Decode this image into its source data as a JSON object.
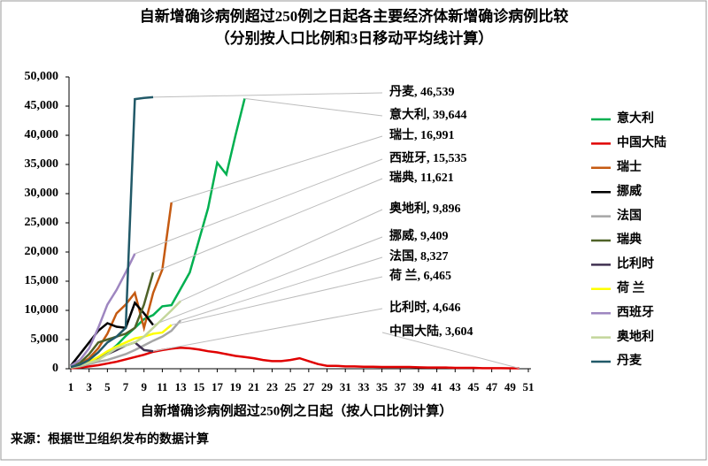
{
  "chart_data": {
    "type": "line",
    "title": "自新增确诊病例超过250例之日起各主要经济体新增确诊病例比较",
    "subtitle": "（分别按人口比例和3日移动平均线计算）",
    "x_label": "自新增确诊病例超过250例之日起（按人口比例计算）",
    "source": "来源：根据世卫组织发布的数据计算",
    "x": [
      1,
      2,
      3,
      4,
      5,
      6,
      7,
      8,
      9,
      10,
      11,
      12,
      13,
      14,
      15,
      16,
      17,
      18,
      19,
      20,
      21,
      22,
      23,
      24,
      25,
      26,
      27,
      28,
      29,
      30,
      31,
      32,
      33,
      34,
      35,
      36,
      37,
      38,
      39,
      40,
      41,
      42,
      43,
      44,
      45,
      46,
      47,
      48,
      49,
      50
    ],
    "xlim": [
      1,
      51
    ],
    "xticks": [
      1,
      3,
      5,
      7,
      9,
      11,
      13,
      15,
      17,
      19,
      21,
      23,
      25,
      27,
      29,
      31,
      33,
      35,
      37,
      39,
      41,
      43,
      45,
      47,
      49,
      51
    ],
    "ylim": [
      0,
      50000
    ],
    "yticks": [
      0,
      {
        "value": 5000,
        "label": "5,000"
      },
      {
        "value": 10000,
        "label": "10,000"
      },
      {
        "value": 15000,
        "label": "15,000"
      },
      {
        "value": 20000,
        "label": "20,000"
      },
      {
        "value": 25000,
        "label": "25,000"
      },
      {
        "value": 30000,
        "label": "30,000"
      },
      {
        "value": 35000,
        "label": "35,000"
      },
      {
        "value": 40000,
        "label": "40,000"
      },
      {
        "value": 45000,
        "label": "45,000"
      },
      {
        "value": 50000,
        "label": "50,000"
      }
    ],
    "series": [
      {
        "name": "意大利",
        "color": "#00b050",
        "end_label": "意大利, 39,644",
        "values": [
          200,
          500,
          900,
          1800,
          2700,
          4000,
          5600,
          7000,
          8500,
          9200,
          10700,
          10900,
          13700,
          16500,
          22000,
          27500,
          35300,
          33300,
          40000,
          46300,
          null,
          null,
          null,
          null,
          null,
          null,
          null,
          null,
          null,
          null,
          null,
          null,
          null,
          null,
          null,
          null,
          null,
          null,
          null,
          null,
          null,
          null,
          null,
          null,
          null,
          null,
          null,
          null,
          null,
          null
        ]
      },
      {
        "name": "中国大陆",
        "color": "#e00000",
        "end_label": "中国大陆, 3,604",
        "values": [
          100,
          200,
          400,
          600,
          900,
          1200,
          1600,
          2000,
          2400,
          2900,
          3200,
          3450,
          3600,
          3500,
          3300,
          3000,
          2800,
          2500,
          2200,
          2000,
          1800,
          1500,
          1300,
          1300,
          1500,
          1800,
          1300,
          800,
          500,
          500,
          400,
          400,
          350,
          350,
          300,
          300,
          300,
          300,
          250,
          200,
          200,
          200,
          150,
          150,
          150,
          100,
          100,
          100,
          80,
          80
        ]
      },
      {
        "name": "瑞士",
        "color": "#c55a11",
        "end_label": "瑞士, 16,991",
        "values": [
          300,
          800,
          1800,
          3500,
          6000,
          9500,
          11000,
          13000,
          7000,
          13000,
          17000,
          28500,
          null,
          null,
          null,
          null,
          null,
          null,
          null,
          null,
          null,
          null,
          null,
          null,
          null,
          null,
          null,
          null,
          null,
          null,
          null,
          null,
          null,
          null,
          null,
          null,
          null,
          null,
          null,
          null,
          null,
          null,
          null,
          null,
          null,
          null,
          null,
          null,
          null,
          null
        ]
      },
      {
        "name": "挪威",
        "color": "#000000",
        "end_label": "挪威, 9,409",
        "values": [
          500,
          2500,
          4500,
          6500,
          7800,
          7200,
          7000,
          11300,
          9500,
          7500,
          null,
          null,
          null,
          null,
          null,
          null,
          null,
          null,
          null,
          null,
          null,
          null,
          null,
          null,
          null,
          null,
          null,
          null,
          null,
          null,
          null,
          null,
          null,
          null,
          null,
          null,
          null,
          null,
          null,
          null,
          null,
          null,
          null,
          null,
          null,
          null,
          null,
          null,
          null,
          null
        ]
      },
      {
        "name": "法国",
        "color": "#a6a6a6",
        "end_label": "法国, 8,327",
        "values": [
          200,
          400,
          800,
          1200,
          1500,
          2000,
          2500,
          3200,
          4000,
          4800,
          5500,
          6500,
          8300,
          null,
          null,
          null,
          null,
          null,
          null,
          null,
          null,
          null,
          null,
          null,
          null,
          null,
          null,
          null,
          null,
          null,
          null,
          null,
          null,
          null,
          null,
          null,
          null,
          null,
          null,
          null,
          null,
          null,
          null,
          null,
          null,
          null,
          null,
          null,
          null,
          null
        ]
      },
      {
        "name": "瑞典",
        "color": "#4f6228",
        "end_label": "瑞典, 11,621",
        "values": [
          300,
          1000,
          2500,
          4500,
          5000,
          5500,
          6000,
          7000,
          11000,
          16500,
          null,
          null,
          null,
          null,
          null,
          null,
          null,
          null,
          null,
          null,
          null,
          null,
          null,
          null,
          null,
          null,
          null,
          null,
          null,
          null,
          null,
          null,
          null,
          null,
          null,
          null,
          null,
          null,
          null,
          null,
          null,
          null,
          null,
          null,
          null,
          null,
          null,
          null,
          null,
          null
        ]
      },
      {
        "name": "比利时",
        "color": "#403151",
        "end_label": "比利时, 4,646",
        "values": [
          200,
          500,
          1000,
          1800,
          2500,
          3200,
          4000,
          4500,
          3200,
          3000,
          null,
          null,
          null,
          null,
          null,
          null,
          null,
          null,
          null,
          null,
          null,
          null,
          null,
          null,
          null,
          null,
          null,
          null,
          null,
          null,
          null,
          null,
          null,
          null,
          null,
          null,
          null,
          null,
          null,
          null,
          null,
          null,
          null,
          null,
          null,
          null,
          null,
          null,
          null,
          null
        ]
      },
      {
        "name": "荷 兰",
        "color": "#ffff00",
        "end_label": "荷 兰, 6,465",
        "values": [
          300,
          700,
          1200,
          2000,
          3000,
          3800,
          4500,
          5200,
          5500,
          6000,
          6200,
          7500,
          null,
          null,
          null,
          null,
          null,
          null,
          null,
          null,
          null,
          null,
          null,
          null,
          null,
          null,
          null,
          null,
          null,
          null,
          null,
          null,
          null,
          null,
          null,
          null,
          null,
          null,
          null,
          null,
          null,
          null,
          null,
          null,
          null,
          null,
          null,
          null,
          null,
          null
        ]
      },
      {
        "name": "西班牙",
        "color": "#9e86c0",
        "end_label": "西班牙, 15,535",
        "values": [
          500,
          1500,
          3500,
          7000,
          11000,
          13500,
          16500,
          19700,
          null,
          null,
          null,
          null,
          null,
          null,
          null,
          null,
          null,
          null,
          null,
          null,
          null,
          null,
          null,
          null,
          null,
          null,
          null,
          null,
          null,
          null,
          null,
          null,
          null,
          null,
          null,
          null,
          null,
          null,
          null,
          null,
          null,
          null,
          null,
          null,
          null,
          null,
          null,
          null,
          null,
          null
        ]
      },
      {
        "name": "奥地利",
        "color": "#c3d69b",
        "end_label": "奥地利, 9,896",
        "values": [
          200,
          500,
          1000,
          1500,
          2500,
          3500,
          4000,
          4500,
          5500,
          7000,
          8500,
          10000,
          11600,
          null,
          null,
          null,
          null,
          null,
          null,
          null,
          null,
          null,
          null,
          null,
          null,
          null,
          null,
          null,
          null,
          null,
          null,
          null,
          null,
          null,
          null,
          null,
          null,
          null,
          null,
          null,
          null,
          null,
          null,
          null,
          null,
          null,
          null,
          null,
          null,
          null
        ]
      },
      {
        "name": "丹麦",
        "color": "#215968",
        "end_label": "丹麦, 46,539",
        "values": [
          300,
          700,
          1500,
          2800,
          4500,
          5500,
          7000,
          46200,
          46400,
          46539,
          null,
          null,
          null,
          null,
          null,
          null,
          null,
          null,
          null,
          null,
          null,
          null,
          null,
          null,
          null,
          null,
          null,
          null,
          null,
          null,
          null,
          null,
          null,
          null,
          null,
          null,
          null,
          null,
          null,
          null,
          null,
          null,
          null,
          null,
          null,
          null,
          null,
          null,
          null,
          null
        ]
      }
    ]
  }
}
